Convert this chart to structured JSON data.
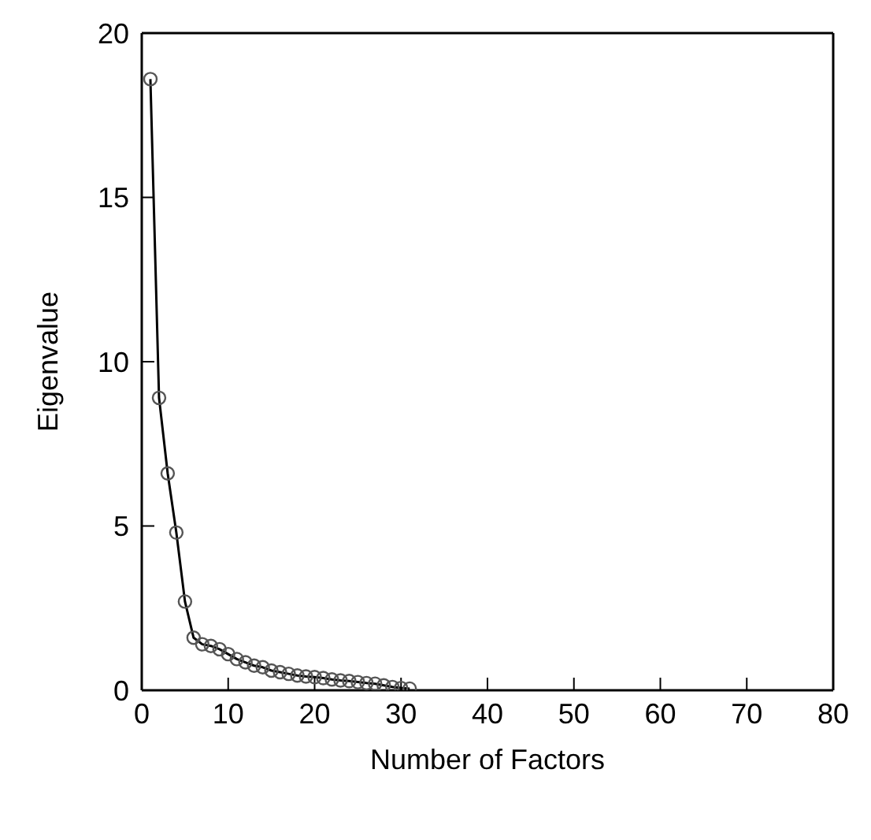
{
  "chart_data": {
    "type": "line",
    "xlabel": "Number of Factors",
    "ylabel": "Eigenvalue",
    "x": [
      1,
      2,
      3,
      4,
      5,
      6,
      7,
      8,
      9,
      10,
      11,
      12,
      13,
      14,
      15,
      16,
      17,
      18,
      19,
      20,
      21,
      22,
      23,
      24,
      25,
      26,
      27,
      28,
      29,
      30,
      31
    ],
    "series": [
      {
        "color": "#000000",
        "values": [
          18.6,
          8.9,
          6.6,
          4.8,
          2.7,
          1.6,
          1.4,
          1.35,
          1.25,
          1.1,
          0.95,
          0.85,
          0.75,
          0.7,
          0.6,
          0.55,
          0.5,
          0.45,
          0.42,
          0.4,
          0.37,
          0.33,
          0.3,
          0.28,
          0.25,
          0.22,
          0.2,
          0.15,
          0.1,
          0.07,
          0.05
        ]
      }
    ],
    "xlim": [
      0,
      80
    ],
    "xticks": [
      0,
      10,
      20,
      30,
      40,
      50,
      60,
      70,
      80
    ],
    "ylim": [
      0,
      20
    ],
    "yticks": [
      0,
      5,
      10,
      15,
      20
    ],
    "marker": "circle",
    "line_style": "solid",
    "grid": false,
    "legend": false
  }
}
